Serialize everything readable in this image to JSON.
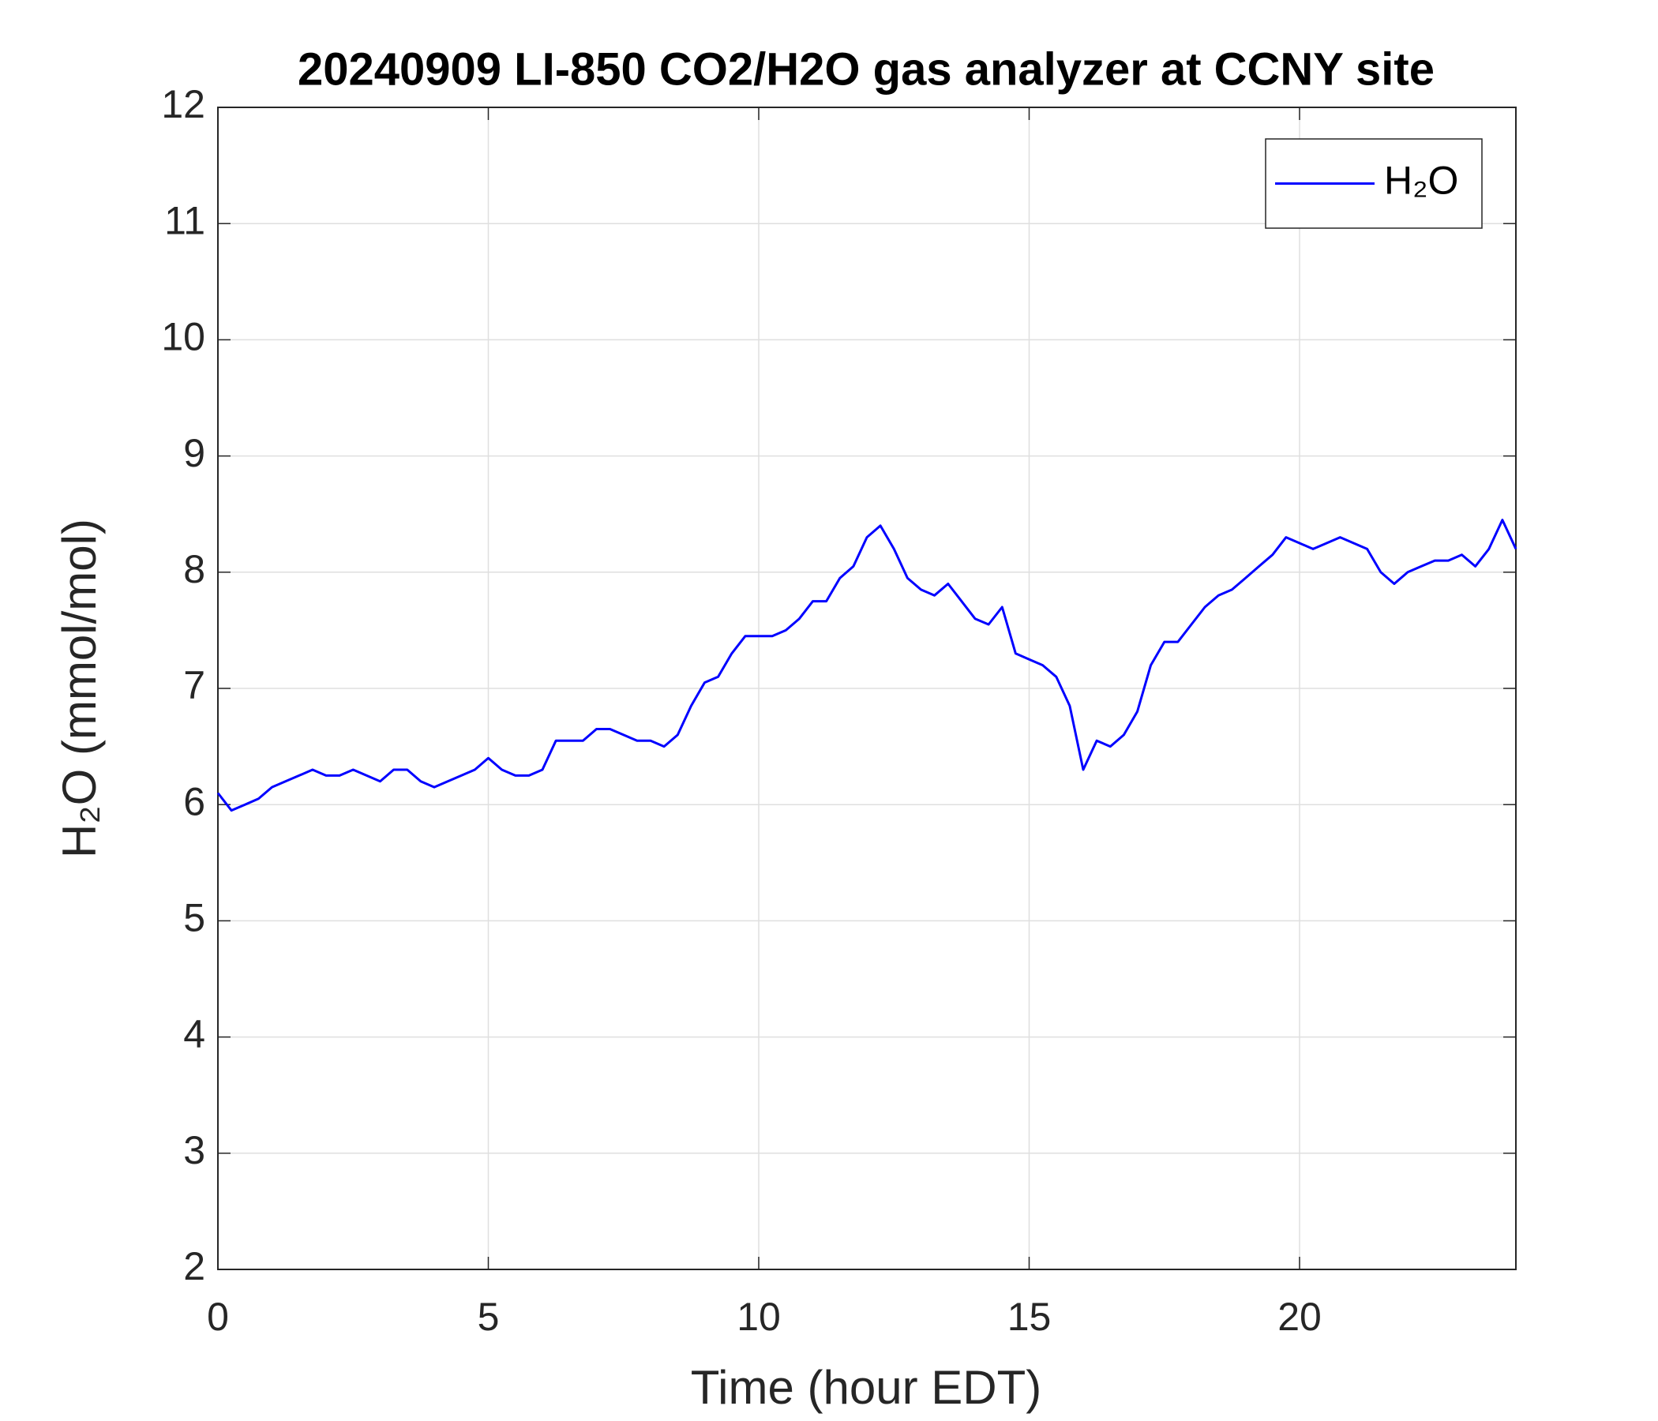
{
  "chart_data": {
    "type": "line",
    "title": "20240909 LI-850 CO2/H2O gas analyzer at CCNY site",
    "x_label": "Time (hour EDT)",
    "y_label": "H₂O (mmol/mol)",
    "xlim": [
      0,
      24
    ],
    "xticks": [
      0,
      5,
      10,
      15,
      20
    ],
    "ylim": [
      2,
      12
    ],
    "yticks": [
      2,
      3,
      4,
      5,
      6,
      7,
      8,
      9,
      10,
      11,
      12
    ],
    "grid": true,
    "legend": "top-right",
    "x": [
      0,
      0.25,
      0.5,
      0.75,
      1,
      1.25,
      1.5,
      1.75,
      2,
      2.25,
      2.5,
      2.75,
      3,
      3.25,
      3.5,
      3.75,
      4,
      4.25,
      4.5,
      4.75,
      5,
      5.25,
      5.5,
      5.75,
      6,
      6.25,
      6.5,
      6.75,
      7,
      7.25,
      7.5,
      7.75,
      8,
      8.25,
      8.5,
      8.75,
      9,
      9.25,
      9.5,
      9.75,
      10,
      10.25,
      10.5,
      10.75,
      11,
      11.25,
      11.5,
      11.75,
      12,
      12.25,
      12.5,
      12.75,
      13,
      13.25,
      13.5,
      13.75,
      14,
      14.25,
      14.5,
      14.75,
      15,
      15.25,
      15.5,
      15.75,
      16,
      16.25,
      16.5,
      16.75,
      17,
      17.25,
      17.5,
      17.75,
      18,
      18.25,
      18.5,
      18.75,
      19,
      19.25,
      19.5,
      19.75,
      20,
      20.25,
      20.5,
      20.75,
      21,
      21.25,
      21.5,
      21.75,
      22,
      22.25,
      22.5,
      22.75,
      23,
      23.25,
      23.5,
      23.75,
      24
    ],
    "series": [
      {
        "name": "H₂O",
        "color": "#0000ff",
        "values": [
          6.1,
          5.95,
          6.0,
          6.05,
          6.15,
          6.2,
          6.25,
          6.3,
          6.25,
          6.25,
          6.3,
          6.25,
          6.2,
          6.3,
          6.3,
          6.2,
          6.15,
          6.2,
          6.25,
          6.3,
          6.4,
          6.3,
          6.25,
          6.25,
          6.3,
          6.55,
          6.55,
          6.55,
          6.65,
          6.65,
          6.6,
          6.55,
          6.55,
          6.5,
          6.6,
          6.85,
          7.05,
          7.1,
          7.3,
          7.45,
          7.45,
          7.45,
          7.5,
          7.6,
          7.75,
          7.75,
          7.95,
          8.05,
          8.3,
          8.4,
          8.2,
          7.95,
          7.85,
          7.8,
          7.9,
          7.75,
          7.6,
          7.55,
          7.7,
          7.3,
          7.25,
          7.2,
          7.1,
          6.85,
          6.3,
          6.55,
          6.5,
          6.6,
          6.8,
          7.2,
          7.4,
          7.4,
          7.55,
          7.7,
          7.8,
          7.85,
          7.95,
          8.05,
          8.15,
          8.3,
          8.25,
          8.2,
          8.25,
          8.3,
          8.25,
          8.2,
          8.0,
          7.9,
          8.0,
          8.05,
          8.1,
          8.1,
          8.15,
          8.05,
          8.2,
          8.45,
          8.2
        ]
      }
    ]
  }
}
